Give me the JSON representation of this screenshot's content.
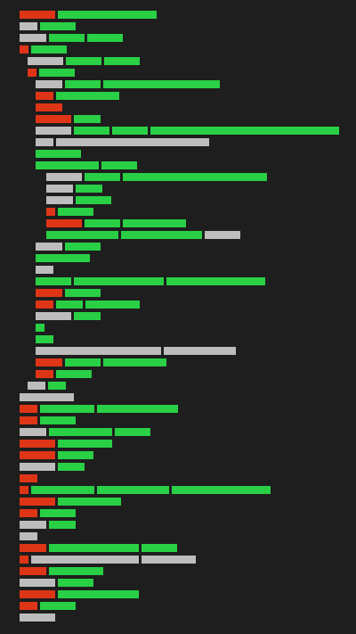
{
  "colors": {
    "background": "#1e1e1e",
    "red": "#df3517",
    "green": "#29d045",
    "gray": "#bdbdbd"
  },
  "rows": [
    [
      [
        "red",
        4
      ],
      [
        "green",
        11
      ]
    ],
    [
      [
        "gray",
        2
      ],
      [
        "green",
        4
      ]
    ],
    [
      [
        "gray",
        3
      ],
      [
        "green",
        4
      ],
      [
        "green",
        4
      ]
    ],
    [
      [
        "red",
        1
      ],
      [
        "green",
        4
      ]
    ],
    [
      [
        "gray",
        4
      ],
      [
        "green",
        4
      ],
      [
        "green",
        4
      ]
    ],
    [
      [
        "red",
        1
      ],
      [
        "green",
        4
      ]
    ],
    [
      [
        "gray",
        3
      ],
      [
        "green",
        4
      ],
      [
        "green",
        13
      ]
    ],
    [
      [
        "red",
        2
      ],
      [
        "green",
        7
      ]
    ],
    [
      [
        "red",
        3
      ]
    ],
    [
      [
        "red",
        4
      ],
      [
        "green",
        3
      ]
    ],
    [
      [
        "gray",
        4
      ],
      [
        "green",
        4
      ],
      [
        "green",
        4
      ],
      [
        "green",
        21
      ]
    ],
    [
      [
        "gray",
        2
      ],
      [
        "gray",
        17
      ]
    ],
    [
      [
        "green",
        5
      ]
    ],
    [
      [
        "green",
        7
      ],
      [
        "green",
        4
      ]
    ],
    [
      [
        "gray",
        4
      ],
      [
        "green",
        4
      ],
      [
        "green",
        16
      ]
    ],
    [
      [
        "gray",
        3
      ],
      [
        "green",
        3
      ]
    ],
    [
      [
        "gray",
        3
      ],
      [
        "green",
        4
      ]
    ],
    [
      [
        "red",
        1
      ],
      [
        "green",
        4
      ]
    ],
    [
      [
        "red",
        4
      ],
      [
        "green",
        4
      ],
      [
        "green",
        7
      ]
    ],
    [
      [
        "green",
        8
      ],
      [
        "green",
        9
      ],
      [
        "gray",
        4
      ]
    ],
    [
      [
        "gray",
        3
      ],
      [
        "green",
        4
      ]
    ],
    [
      [
        "green",
        6
      ]
    ],
    [
      [
        "gray",
        2
      ]
    ],
    [
      [
        "green",
        4
      ],
      [
        "green",
        10
      ],
      [
        "green",
        11
      ]
    ],
    [
      [
        "red",
        3
      ],
      [
        "green",
        4
      ]
    ],
    [
      [
        "red",
        2
      ],
      [
        "green",
        3
      ],
      [
        "green",
        6
      ]
    ],
    [
      [
        "gray",
        4
      ],
      [
        "green",
        3
      ]
    ],
    [
      [
        "green",
        1
      ]
    ],
    [
      [
        "green",
        2
      ]
    ],
    [
      [
        "gray",
        14
      ],
      [
        "gray",
        8
      ]
    ],
    [
      [
        "red",
        3
      ],
      [
        "green",
        4
      ],
      [
        "green",
        7
      ]
    ],
    [
      [
        "red",
        2
      ],
      [
        "green",
        4
      ]
    ],
    [
      [
        "gray",
        2
      ],
      [
        "green",
        2
      ]
    ],
    [
      [
        "gray",
        6
      ]
    ],
    [
      [
        "red",
        2
      ],
      [
        "green",
        6
      ],
      [
        "green",
        9
      ]
    ],
    [
      [
        "red",
        2
      ],
      [
        "green",
        4
      ]
    ],
    [
      [
        "gray",
        3
      ],
      [
        "green",
        7
      ],
      [
        "green",
        4
      ]
    ],
    [
      [
        "red",
        4
      ],
      [
        "green",
        6
      ]
    ],
    [
      [
        "red",
        4
      ],
      [
        "green",
        4
      ]
    ],
    [
      [
        "gray",
        4
      ],
      [
        "green",
        3
      ]
    ],
    [
      [
        "red",
        2
      ]
    ],
    [
      [
        "red",
        1
      ],
      [
        "green",
        7
      ],
      [
        "green",
        8
      ],
      [
        "green",
        11
      ]
    ],
    [
      [
        "red",
        4
      ],
      [
        "green",
        7
      ]
    ],
    [
      [
        "red",
        2
      ],
      [
        "green",
        4
      ]
    ],
    [
      [
        "gray",
        3
      ],
      [
        "green",
        3
      ]
    ],
    [
      [
        "gray",
        2
      ]
    ],
    [
      [
        "red",
        3
      ],
      [
        "green",
        10
      ],
      [
        "green",
        4
      ]
    ],
    [
      [
        "red",
        1
      ],
      [
        "gray",
        12
      ],
      [
        "gray",
        6
      ]
    ],
    [
      [
        "red",
        3
      ],
      [
        "green",
        6
      ]
    ],
    [
      [
        "gray",
        4
      ],
      [
        "green",
        4
      ]
    ],
    [
      [
        "red",
        4
      ],
      [
        "green",
        9
      ]
    ],
    [
      [
        "red",
        2
      ],
      [
        "green",
        4
      ]
    ],
    [
      [
        "gray",
        4
      ]
    ]
  ]
}
